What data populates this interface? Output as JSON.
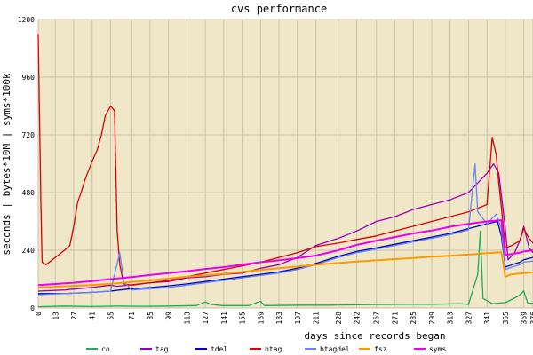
{
  "chart_data": {
    "type": "line",
    "title": "cvs performance",
    "xlabel": "days since records began",
    "ylabel": "seconds | bytes*10M | syms*100k",
    "xlim": [
      0,
      376
    ],
    "ylim": [
      0,
      1200
    ],
    "x_ticks": [
      0,
      13,
      27,
      41,
      55,
      71,
      85,
      99,
      113,
      127,
      141,
      155,
      169,
      183,
      197,
      211,
      228,
      242,
      257,
      271,
      285,
      299,
      313,
      327,
      341,
      355,
      369,
      376
    ],
    "y_ticks": [
      0,
      240,
      480,
      720,
      960,
      1200
    ],
    "grid": true,
    "background": "#efe7c8",
    "legend_position": "bottom",
    "series": [
      {
        "name": "co",
        "color": "#22aa55",
        "points": [
          [
            0,
            5
          ],
          [
            20,
            8
          ],
          [
            40,
            6
          ],
          [
            60,
            8
          ],
          [
            80,
            7
          ],
          [
            100,
            8
          ],
          [
            120,
            10
          ],
          [
            127,
            25
          ],
          [
            131,
            15
          ],
          [
            140,
            10
          ],
          [
            160,
            10
          ],
          [
            169,
            28
          ],
          [
            172,
            10
          ],
          [
            200,
            12
          ],
          [
            220,
            12
          ],
          [
            250,
            14
          ],
          [
            280,
            15
          ],
          [
            300,
            15
          ],
          [
            320,
            18
          ],
          [
            327,
            15
          ],
          [
            334,
            140
          ],
          [
            336,
            320
          ],
          [
            338,
            40
          ],
          [
            345,
            18
          ],
          [
            355,
            22
          ],
          [
            365,
            50
          ],
          [
            369,
            70
          ],
          [
            372,
            20
          ],
          [
            376,
            20
          ]
        ]
      },
      {
        "name": "tag",
        "color": "#9900bb",
        "points": [
          [
            0,
            70
          ],
          [
            20,
            75
          ],
          [
            40,
            85
          ],
          [
            55,
            95
          ],
          [
            60,
            90
          ],
          [
            85,
            105
          ],
          [
            99,
            110
          ],
          [
            113,
            125
          ],
          [
            127,
            130
          ],
          [
            141,
            140
          ],
          [
            155,
            145
          ],
          [
            169,
            165
          ],
          [
            183,
            180
          ],
          [
            197,
            210
          ],
          [
            211,
            260
          ],
          [
            228,
            290
          ],
          [
            242,
            320
          ],
          [
            257,
            360
          ],
          [
            271,
            380
          ],
          [
            285,
            410
          ],
          [
            299,
            430
          ],
          [
            313,
            450
          ],
          [
            327,
            480
          ],
          [
            334,
            520
          ],
          [
            341,
            560
          ],
          [
            346,
            600
          ],
          [
            350,
            560
          ],
          [
            355,
            330
          ],
          [
            357,
            200
          ],
          [
            362,
            230
          ],
          [
            366,
            280
          ],
          [
            369,
            340
          ],
          [
            373,
            250
          ],
          [
            376,
            230
          ]
        ]
      },
      {
        "name": "tdel",
        "color": "#0000cc",
        "points": [
          [
            0,
            60
          ],
          [
            20,
            60
          ],
          [
            41,
            65
          ],
          [
            55,
            70
          ],
          [
            62,
            75
          ],
          [
            71,
            80
          ],
          [
            85,
            85
          ],
          [
            99,
            92
          ],
          [
            113,
            100
          ],
          [
            127,
            110
          ],
          [
            141,
            120
          ],
          [
            155,
            130
          ],
          [
            169,
            140
          ],
          [
            183,
            150
          ],
          [
            197,
            165
          ],
          [
            211,
            185
          ],
          [
            228,
            215
          ],
          [
            242,
            235
          ],
          [
            257,
            250
          ],
          [
            271,
            265
          ],
          [
            285,
            280
          ],
          [
            299,
            295
          ],
          [
            313,
            310
          ],
          [
            327,
            330
          ],
          [
            341,
            350
          ],
          [
            349,
            360
          ],
          [
            352,
            300
          ],
          [
            355,
            170
          ],
          [
            360,
            180
          ],
          [
            366,
            190
          ],
          [
            369,
            200
          ],
          [
            376,
            210
          ]
        ]
      },
      {
        "name": "btag",
        "color": "#dd0000",
        "points": [
          [
            0,
            1140
          ],
          [
            2,
            440
          ],
          [
            3,
            190
          ],
          [
            6,
            180
          ],
          [
            13,
            210
          ],
          [
            20,
            240
          ],
          [
            24,
            260
          ],
          [
            27,
            340
          ],
          [
            30,
            440
          ],
          [
            32,
            470
          ],
          [
            36,
            540
          ],
          [
            41,
            610
          ],
          [
            45,
            660
          ],
          [
            48,
            720
          ],
          [
            51,
            800
          ],
          [
            55,
            840
          ],
          [
            58,
            820
          ],
          [
            60,
            320
          ],
          [
            62,
            180
          ],
          [
            65,
            100
          ],
          [
            71,
            95
          ],
          [
            85,
            105
          ],
          [
            99,
            115
          ],
          [
            113,
            130
          ],
          [
            127,
            145
          ],
          [
            141,
            160
          ],
          [
            155,
            175
          ],
          [
            169,
            190
          ],
          [
            183,
            210
          ],
          [
            197,
            230
          ],
          [
            211,
            255
          ],
          [
            228,
            270
          ],
          [
            242,
            285
          ],
          [
            257,
            300
          ],
          [
            271,
            320
          ],
          [
            285,
            340
          ],
          [
            299,
            360
          ],
          [
            313,
            380
          ],
          [
            327,
            400
          ],
          [
            341,
            430
          ],
          [
            345,
            710
          ],
          [
            348,
            640
          ],
          [
            350,
            520
          ],
          [
            352,
            420
          ],
          [
            355,
            250
          ],
          [
            360,
            260
          ],
          [
            366,
            280
          ],
          [
            369,
            330
          ],
          [
            373,
            290
          ],
          [
            376,
            270
          ]
        ]
      },
      {
        "name": "btagdel",
        "color": "#6688ee",
        "points": [
          [
            0,
            55
          ],
          [
            20,
            60
          ],
          [
            41,
            65
          ],
          [
            55,
            70
          ],
          [
            62,
            230
          ],
          [
            65,
            110
          ],
          [
            71,
            75
          ],
          [
            85,
            80
          ],
          [
            99,
            85
          ],
          [
            113,
            95
          ],
          [
            127,
            105
          ],
          [
            141,
            115
          ],
          [
            155,
            125
          ],
          [
            169,
            135
          ],
          [
            183,
            145
          ],
          [
            197,
            160
          ],
          [
            211,
            180
          ],
          [
            228,
            210
          ],
          [
            242,
            230
          ],
          [
            257,
            245
          ],
          [
            271,
            260
          ],
          [
            285,
            275
          ],
          [
            299,
            290
          ],
          [
            313,
            305
          ],
          [
            327,
            325
          ],
          [
            332,
            600
          ],
          [
            334,
            400
          ],
          [
            341,
            350
          ],
          [
            348,
            390
          ],
          [
            352,
            330
          ],
          [
            355,
            160
          ],
          [
            360,
            170
          ],
          [
            366,
            180
          ],
          [
            369,
            190
          ],
          [
            376,
            195
          ]
        ]
      },
      {
        "name": "fsz",
        "color": "#ff9900",
        "points": [
          [
            0,
            85
          ],
          [
            20,
            90
          ],
          [
            40,
            95
          ],
          [
            55,
            100
          ],
          [
            71,
            108
          ],
          [
            85,
            115
          ],
          [
            99,
            122
          ],
          [
            113,
            130
          ],
          [
            127,
            135
          ],
          [
            141,
            142
          ],
          [
            155,
            150
          ],
          [
            169,
            158
          ],
          [
            183,
            165
          ],
          [
            197,
            172
          ],
          [
            211,
            180
          ],
          [
            228,
            187
          ],
          [
            242,
            193
          ],
          [
            257,
            198
          ],
          [
            271,
            203
          ],
          [
            285,
            208
          ],
          [
            299,
            213
          ],
          [
            313,
            217
          ],
          [
            327,
            222
          ],
          [
            341,
            228
          ],
          [
            352,
            232
          ],
          [
            355,
            130
          ],
          [
            360,
            140
          ],
          [
            369,
            145
          ],
          [
            376,
            148
          ]
        ]
      },
      {
        "name": "syms",
        "color": "#ee00ee",
        "points": [
          [
            0,
            95
          ],
          [
            27,
            105
          ],
          [
            41,
            112
          ],
          [
            55,
            120
          ],
          [
            71,
            128
          ],
          [
            85,
            137
          ],
          [
            99,
            145
          ],
          [
            113,
            153
          ],
          [
            127,
            162
          ],
          [
            141,
            170
          ],
          [
            155,
            180
          ],
          [
            169,
            190
          ],
          [
            183,
            198
          ],
          [
            197,
            207
          ],
          [
            211,
            218
          ],
          [
            228,
            240
          ],
          [
            242,
            262
          ],
          [
            257,
            280
          ],
          [
            271,
            295
          ],
          [
            285,
            310
          ],
          [
            299,
            322
          ],
          [
            313,
            338
          ],
          [
            327,
            350
          ],
          [
            341,
            360
          ],
          [
            352,
            365
          ],
          [
            355,
            220
          ],
          [
            360,
            225
          ],
          [
            366,
            230
          ],
          [
            369,
            235
          ],
          [
            376,
            240
          ]
        ]
      }
    ]
  }
}
